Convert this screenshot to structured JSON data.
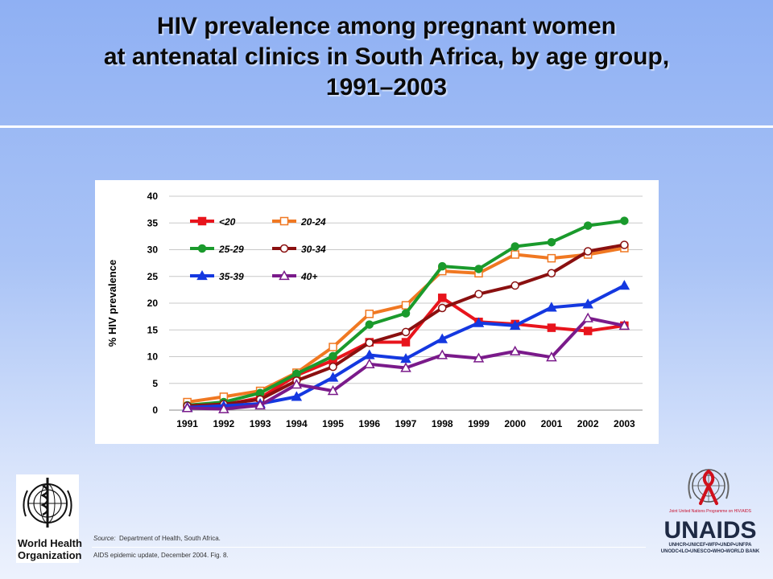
{
  "title": {
    "line1": "HIV prevalence among pregnant women",
    "line2": "at antenatal clinics in South Africa, by age group,",
    "line3": "1991–2003"
  },
  "source": {
    "label": "Source:",
    "text": "Department of Health, South Africa."
  },
  "update_note": "AIDS epidemic update, December 2004.  Fig. 8.",
  "who": {
    "line1": "World Health",
    "line2": "Organization"
  },
  "unaids": {
    "name": "UNAIDS",
    "tagline": "Joint United Nations Programme on HIV/AIDS",
    "cosponsors_1": "UNHCR•UNICEF•WFP•UNDP•UNFPA",
    "cosponsors_2": "UNODC•ILO•UNESCO•WHO•WORLD BANK"
  },
  "colors": {
    "lt20": "#e8141c",
    "a20_24": "#f07822",
    "a25_29": "#1a9a2c",
    "a30_34": "#8a1010",
    "a35_39": "#1438e0",
    "a40p": "#7a1a8a"
  },
  "chart_data": {
    "type": "line",
    "title": "",
    "xlabel": "",
    "ylabel": "% HIV prevalence",
    "ylim": [
      0,
      40
    ],
    "yticks": [
      0,
      5,
      10,
      15,
      20,
      25,
      30,
      35,
      40
    ],
    "grid": true,
    "legend": "top-left",
    "x": [
      "1991",
      "1992",
      "1993",
      "1994",
      "1995",
      "1996",
      "1997",
      "1998",
      "1999",
      "2000",
      "2001",
      "2002",
      "2003"
    ],
    "series": [
      {
        "name": "<20",
        "marker": "square-filled",
        "color": "#e8141c",
        "values": [
          0.7,
          1.0,
          2.3,
          6.5,
          9.3,
          12.7,
          12.7,
          21.0,
          16.5,
          16.1,
          15.4,
          14.8,
          15.8
        ]
      },
      {
        "name": "20-24",
        "marker": "square-open",
        "color": "#f07822",
        "values": [
          1.5,
          2.5,
          3.6,
          7.0,
          11.8,
          18.0,
          19.6,
          26.0,
          25.6,
          29.1,
          28.4,
          29.1,
          30.3
        ]
      },
      {
        "name": "25-29",
        "marker": "circle-filled",
        "color": "#1a9a2c",
        "values": [
          0.9,
          1.5,
          3.2,
          6.8,
          10.1,
          16.0,
          18.1,
          26.9,
          26.4,
          30.6,
          31.4,
          34.5,
          35.4
        ]
      },
      {
        "name": "30-34",
        "marker": "circle-open",
        "color": "#8a1010",
        "values": [
          0.8,
          1.1,
          2.0,
          5.5,
          8.1,
          12.6,
          14.6,
          19.1,
          21.7,
          23.3,
          25.6,
          29.7,
          30.9
        ]
      },
      {
        "name": "35-39",
        "marker": "triangle-filled",
        "color": "#1438e0",
        "values": [
          0.5,
          0.8,
          1.2,
          2.5,
          6.1,
          10.3,
          9.6,
          13.3,
          16.3,
          15.8,
          19.2,
          19.8,
          23.3
        ]
      },
      {
        "name": "40+",
        "marker": "triangle-open",
        "color": "#7a1a8a",
        "values": [
          0.4,
          0.2,
          0.9,
          4.8,
          3.6,
          8.6,
          7.9,
          10.3,
          9.7,
          11.0,
          9.9,
          17.2,
          15.8
        ]
      }
    ]
  }
}
